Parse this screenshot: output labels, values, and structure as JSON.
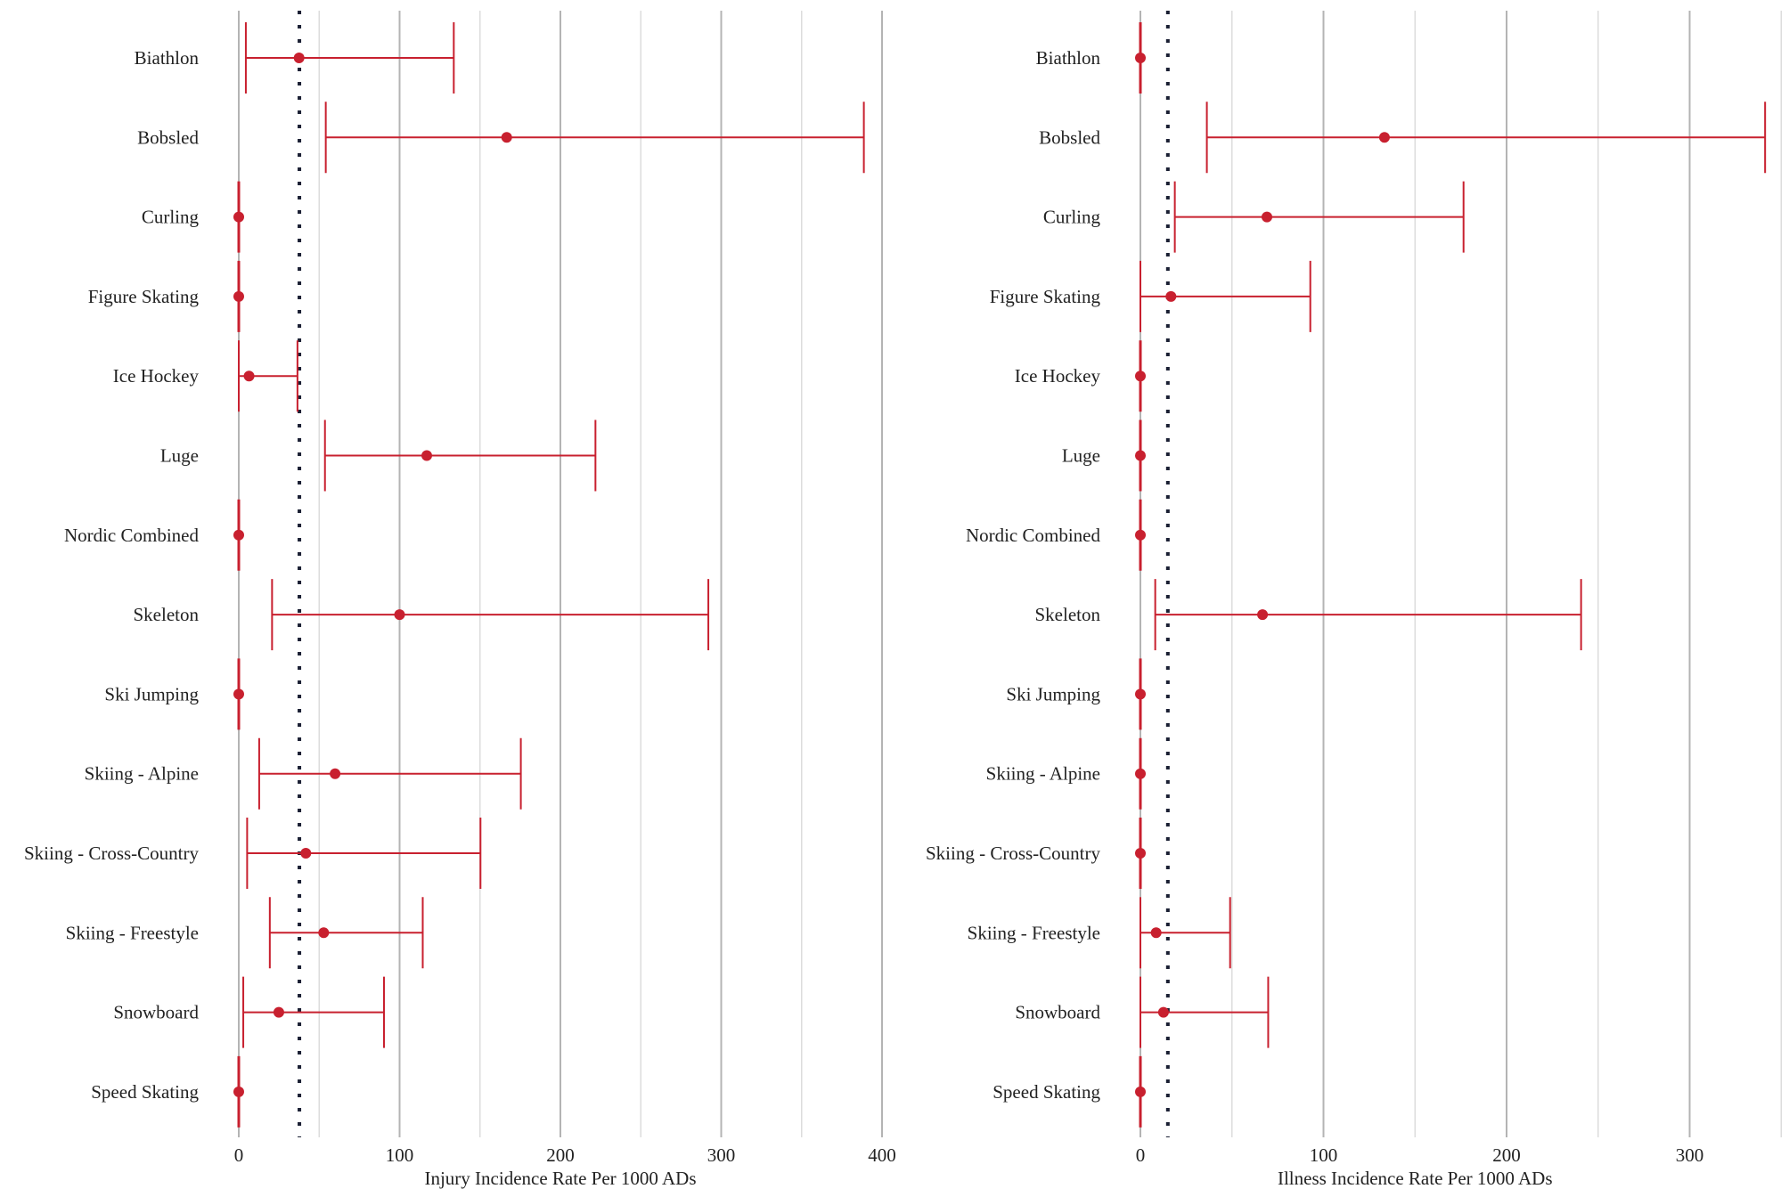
{
  "chart_data": [
    {
      "type": "forest",
      "title": "",
      "xlabel": "Injury Incidence Rate Per 1000 ADs",
      "ylabel": "",
      "xlim": [
        0,
        400
      ],
      "xticks": [
        0,
        100,
        200,
        300,
        400
      ],
      "minor_gridlines": [
        50,
        150,
        250,
        350
      ],
      "grid": true,
      "reference_line": {
        "value": 37.7,
        "style": "dotted"
      },
      "categories": [
        "Biathlon",
        "Bobsled",
        "Curling",
        "Figure Skating",
        "Ice Hockey",
        "Luge",
        "Nordic Combined",
        "Skeleton",
        "Ski Jumping",
        "Skiing - Alpine",
        "Skiing - Cross-Country",
        "Skiing - Freestyle",
        "Snowboard",
        "Speed Skating"
      ],
      "estimates": [
        37.5,
        166.6,
        0,
        0,
        6.4,
        116.9,
        0,
        100.0,
        0,
        59.9,
        41.7,
        52.8,
        24.9,
        0
      ],
      "lower": [
        4.4,
        54.1,
        0,
        0,
        0,
        53.6,
        0,
        20.7,
        0,
        12.7,
        5.2,
        19.3,
        2.8,
        0
      ],
      "upper": [
        133.7,
        388.7,
        0,
        0,
        36.5,
        221.8,
        0,
        292.0,
        0,
        175.4,
        150.3,
        114.4,
        90.3,
        0
      ]
    },
    {
      "type": "forest",
      "title": "",
      "xlabel": "Illness Incidence Rate Per 1000 ADs",
      "ylabel": "",
      "xlim": [
        0,
        350
      ],
      "xticks": [
        0,
        100,
        200,
        300
      ],
      "minor_gridlines": [
        50,
        150,
        250,
        350
      ],
      "grid": true,
      "reference_line": {
        "value": 15.0,
        "style": "dotted"
      },
      "categories": [
        "Biathlon",
        "Bobsled",
        "Curling",
        "Figure Skating",
        "Ice Hockey",
        "Luge",
        "Nordic Combined",
        "Skeleton",
        "Ski Jumping",
        "Skiing - Alpine",
        "Skiing - Cross-Country",
        "Skiing - Freestyle",
        "Snowboard",
        "Speed Skating"
      ],
      "estimates": [
        0,
        133.3,
        69.1,
        16.7,
        0,
        0,
        0,
        66.7,
        0,
        0,
        0,
        8.6,
        12.6,
        0
      ],
      "lower": [
        0,
        36.3,
        18.8,
        0,
        0,
        0,
        0,
        8.1,
        0,
        0,
        0,
        0,
        0,
        0
      ],
      "upper": [
        0,
        341.2,
        176.5,
        92.8,
        0,
        0,
        0,
        240.7,
        0,
        0,
        0,
        49.0,
        69.8,
        0
      ]
    }
  ],
  "colors": {
    "point": "#c8202f",
    "ci": "#c8202f",
    "reference": "#1a1f33",
    "major_grid": "#b4b4b4",
    "minor_grid": "#dcdcdc"
  }
}
